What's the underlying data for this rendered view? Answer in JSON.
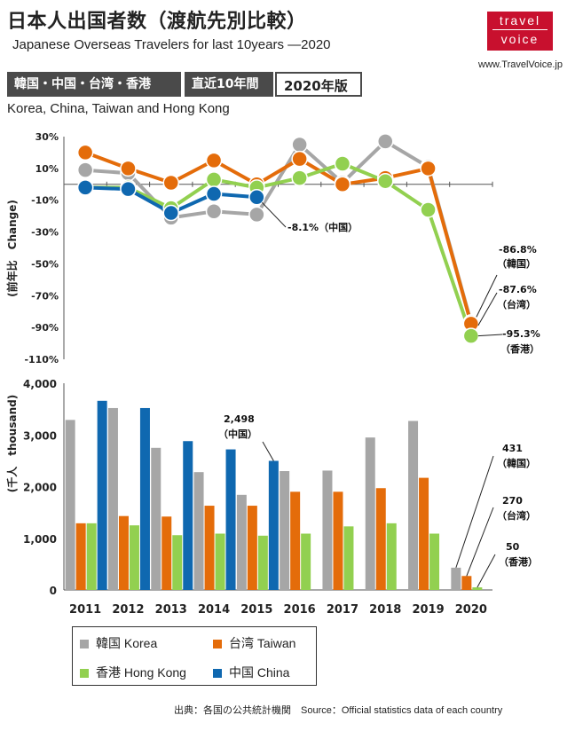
{
  "header": {
    "title": "日本人出国者数（渡航先別比較）",
    "subtitle": "Japanese Overseas Travelers for last 10years ―2020",
    "logo_line1": "travel",
    "logo_line2": "voice",
    "site": "www.TravelVoice.jp",
    "badge_regions": "韓国・中国・台湾・香港",
    "badge_period": "直近10年間",
    "badge_edition": "2020年版",
    "regions_en": "Korea, China, Taiwan and Hong Kong"
  },
  "colors": {
    "korea": "#a6a6a6",
    "taiwan": "#e46c0a",
    "hongkong": "#92d050",
    "china": "#0f68b0",
    "logo": "#c8102e"
  },
  "chart_data": [
    {
      "type": "line",
      "x": [
        "2011",
        "2012",
        "2013",
        "2014",
        "2015",
        "2016",
        "2017",
        "2018",
        "2019",
        "2020"
      ],
      "ylabel": "(前年比　Change)",
      "ylim": [
        -110,
        30
      ],
      "yticks": [
        "30%",
        "10%",
        "-10%",
        "-30%",
        "-50%",
        "-70%",
        "-90%",
        "-110%"
      ],
      "series": [
        {
          "name": "韓国 Korea",
          "color_key": "korea",
          "values": [
            9,
            7,
            -21,
            -17,
            -19,
            25,
            1,
            27,
            11,
            -86.8
          ]
        },
        {
          "name": "台湾 Taiwan",
          "color_key": "taiwan",
          "values": [
            20,
            10,
            1,
            15,
            0,
            16,
            0,
            4,
            10,
            -87.6
          ]
        },
        {
          "name": "香港 Hong Kong",
          "color_key": "hongkong",
          "values": [
            -2,
            -2,
            -15,
            3,
            -2,
            4,
            13,
            2,
            -16,
            -95.3
          ]
        },
        {
          "name": "中国 China",
          "color_key": "china",
          "values": [
            -2,
            -3,
            -18,
            -6,
            -8.1,
            null,
            null,
            null,
            null,
            null
          ]
        }
      ],
      "annotations": [
        {
          "text": "-8.1%（中国）"
        },
        {
          "text": "-86.8%",
          "sub": "（韓国）"
        },
        {
          "text": "-87.6%",
          "sub": "（台湾）"
        },
        {
          "text": "-95.3%",
          "sub": "（香港）"
        }
      ]
    },
    {
      "type": "bar",
      "categories": [
        "2011",
        "2012",
        "2013",
        "2014",
        "2015",
        "2016",
        "2017",
        "2018",
        "2019",
        "2020"
      ],
      "ylabel": "(千人　thousand)",
      "ylim": [
        0,
        4000
      ],
      "yticks": [
        "0",
        "1,000",
        "2,000",
        "3,000",
        "4,000"
      ],
      "series": [
        {
          "name": "韓国 Korea",
          "color_key": "korea",
          "values": [
            3290,
            3520,
            2750,
            2280,
            1840,
            2300,
            2310,
            2950,
            3270,
            431
          ]
        },
        {
          "name": "台湾 Taiwan",
          "color_key": "taiwan",
          "values": [
            1290,
            1430,
            1420,
            1630,
            1630,
            1900,
            1900,
            1970,
            2170,
            270
          ]
        },
        {
          "name": "香港 Hong Kong",
          "color_key": "hongkong",
          "values": [
            1290,
            1250,
            1060,
            1090,
            1050,
            1090,
            1230,
            1290,
            1090,
            50
          ]
        },
        {
          "name": "中国 China",
          "color_key": "china",
          "values": [
            3660,
            3520,
            2880,
            2720,
            2498,
            null,
            null,
            null,
            null,
            null
          ]
        }
      ],
      "annotations": [
        {
          "text": "2,498",
          "sub": "（中国）"
        },
        {
          "text": "431",
          "sub": "（韓国）"
        },
        {
          "text": "270",
          "sub": "（台湾）"
        },
        {
          "text": "50",
          "sub": "（香港）"
        }
      ]
    }
  ],
  "legend": [
    {
      "label": "韓国 Korea",
      "color_key": "korea"
    },
    {
      "label": "台湾 Taiwan",
      "color_key": "taiwan"
    },
    {
      "label": "香港 Hong Kong",
      "color_key": "hongkong"
    },
    {
      "label": "中国 China",
      "color_key": "china"
    }
  ],
  "source": "出典：各国の公共統計機関　Source：Official statistics data of each country"
}
